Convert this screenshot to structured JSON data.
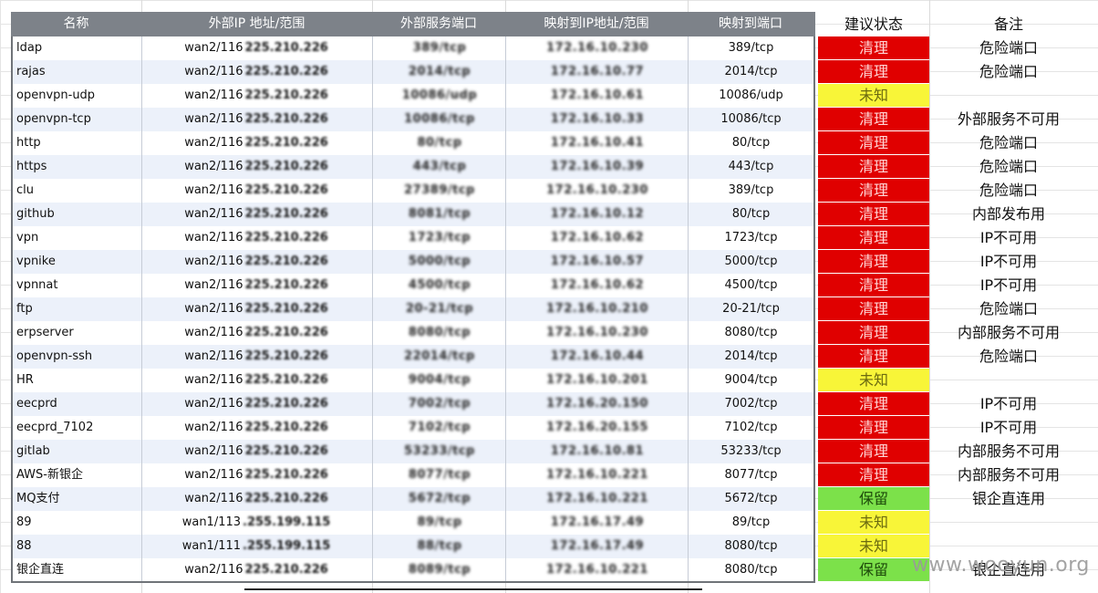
{
  "headers": {
    "name": "名称",
    "ext_ip": "外部IP 地址/范围",
    "ext_port": "外部服务端口",
    "map_ip": "映射到IP地址/范围",
    "map_port": "映射到端口",
    "status": "建议状态",
    "note": "备注"
  },
  "rows": [
    {
      "name": "ldap",
      "ext_prefix": "wan2/116",
      "ext_blur": "225.210.226",
      "ext_port": "389/tcp",
      "map_ip": "172.16.10.230",
      "map_port": "389/tcp",
      "status": "清理",
      "status_color": "red",
      "note": "危险端口"
    },
    {
      "name": "rajas",
      "ext_prefix": "wan2/116",
      "ext_blur": "225.210.226",
      "ext_port": "2014/tcp",
      "map_ip": "172.16.10.77",
      "map_port": "2014/tcp",
      "status": "清理",
      "status_color": "red",
      "note": "危险端口"
    },
    {
      "name": "openvpn-udp",
      "ext_prefix": "wan2/116",
      "ext_blur": "225.210.226",
      "ext_port": "10086/udp",
      "map_ip": "172.16.10.61",
      "map_port": "10086/udp",
      "status": "未知",
      "status_color": "yellow",
      "note": ""
    },
    {
      "name": "openvpn-tcp",
      "ext_prefix": "wan2/116",
      "ext_blur": "225.210.226",
      "ext_port": "10086/tcp",
      "map_ip": "172.16.10.33",
      "map_port": "10086/tcp",
      "status": "清理",
      "status_color": "red",
      "note": "外部服务不可用"
    },
    {
      "name": "http",
      "ext_prefix": "wan2/116",
      "ext_blur": "225.210.226",
      "ext_port": "80/tcp",
      "map_ip": "172.16.10.41",
      "map_port": "80/tcp",
      "status": "清理",
      "status_color": "red",
      "note": "危险端口"
    },
    {
      "name": "https",
      "ext_prefix": "wan2/116",
      "ext_blur": "225.210.226",
      "ext_port": "443/tcp",
      "map_ip": "172.16.10.39",
      "map_port": "443/tcp",
      "status": "清理",
      "status_color": "red",
      "note": "危险端口"
    },
    {
      "name": "clu",
      "ext_prefix": "wan2/116",
      "ext_blur": "225.210.226",
      "ext_port": "27389/tcp",
      "map_ip": "172.16.10.230",
      "map_port": "389/tcp",
      "status": "清理",
      "status_color": "red",
      "note": "危险端口"
    },
    {
      "name": "github",
      "ext_prefix": "wan2/116",
      "ext_blur": "225.210.226",
      "ext_port": "8081/tcp",
      "map_ip": "172.16.10.12",
      "map_port": "80/tcp",
      "status": "清理",
      "status_color": "red",
      "note": "内部发布用"
    },
    {
      "name": "vpn",
      "ext_prefix": "wan2/116",
      "ext_blur": "225.210.226",
      "ext_port": "1723/tcp",
      "map_ip": "172.16.10.62",
      "map_port": "1723/tcp",
      "status": "清理",
      "status_color": "red",
      "note": "IP不可用"
    },
    {
      "name": "vpnike",
      "ext_prefix": "wan2/116",
      "ext_blur": "225.210.226",
      "ext_port": "5000/tcp",
      "map_ip": "172.16.10.57",
      "map_port": "5000/tcp",
      "status": "清理",
      "status_color": "red",
      "note": "IP不可用"
    },
    {
      "name": "vpnnat",
      "ext_prefix": "wan2/116",
      "ext_blur": "225.210.226",
      "ext_port": "4500/tcp",
      "map_ip": "172.16.10.62",
      "map_port": "4500/tcp",
      "status": "清理",
      "status_color": "red",
      "note": "IP不可用"
    },
    {
      "name": "ftp",
      "ext_prefix": "wan2/116",
      "ext_blur": "225.210.226",
      "ext_port": "20-21/tcp",
      "map_ip": "172.16.10.210",
      "map_port": "20-21/tcp",
      "status": "清理",
      "status_color": "red",
      "note": "危险端口"
    },
    {
      "name": "erpserver",
      "ext_prefix": "wan2/116",
      "ext_blur": "225.210.226",
      "ext_port": "8080/tcp",
      "map_ip": "172.16.10.230",
      "map_port": "8080/tcp",
      "status": "清理",
      "status_color": "red",
      "note": "内部服务不可用"
    },
    {
      "name": "openvpn-ssh",
      "ext_prefix": "wan2/116",
      "ext_blur": "225.210.226",
      "ext_port": "22014/tcp",
      "map_ip": "172.16.10.44",
      "map_port": "2014/tcp",
      "status": "清理",
      "status_color": "red",
      "note": "危险端口"
    },
    {
      "name": "HR",
      "ext_prefix": "wan2/116",
      "ext_blur": "225.210.226",
      "ext_port": "9004/tcp",
      "map_ip": "172.16.10.201",
      "map_port": "9004/tcp",
      "status": "未知",
      "status_color": "yellow",
      "note": ""
    },
    {
      "name": "eecprd",
      "ext_prefix": "wan2/116",
      "ext_blur": "225.210.226",
      "ext_port": "7002/tcp",
      "map_ip": "172.16.20.150",
      "map_port": "7002/tcp",
      "status": "清理",
      "status_color": "red",
      "note": "IP不可用"
    },
    {
      "name": "eecprd_7102",
      "ext_prefix": "wan2/116",
      "ext_blur": "225.210.226",
      "ext_port": "7102/tcp",
      "map_ip": "172.16.20.155",
      "map_port": "7102/tcp",
      "status": "清理",
      "status_color": "red",
      "note": "IP不可用"
    },
    {
      "name": "gitlab",
      "ext_prefix": "wan2/116",
      "ext_blur": "225.210.226",
      "ext_port": "53233/tcp",
      "map_ip": "172.16.10.81",
      "map_port": "53233/tcp",
      "status": "清理",
      "status_color": "red",
      "note": "内部服务不可用"
    },
    {
      "name": "AWS-新银企",
      "ext_prefix": "wan2/116",
      "ext_blur": "225.210.226",
      "ext_port": "8077/tcp",
      "map_ip": "172.16.10.221",
      "map_port": "8077/tcp",
      "status": "清理",
      "status_color": "red",
      "note": "内部服务不可用"
    },
    {
      "name": "MQ支付",
      "ext_prefix": "wan2/116",
      "ext_blur": "225.210.226",
      "ext_port": "5672/tcp",
      "map_ip": "172.16.10.221",
      "map_port": "5672/tcp",
      "status": "保留",
      "status_color": "green",
      "note": "银企直连用"
    },
    {
      "name": "89",
      "ext_prefix": "wan1/113",
      "ext_blur": ".255.199.115",
      "ext_port": "89/tcp",
      "map_ip": "172.16.17.49",
      "map_port": "89/tcp",
      "status": "未知",
      "status_color": "yellow",
      "note": ""
    },
    {
      "name": "88",
      "ext_prefix": "wan1/111",
      "ext_blur": ".255.199.115",
      "ext_port": "88/tcp",
      "map_ip": "172.16.17.49",
      "map_port": "8080/tcp",
      "status": "未知",
      "status_color": "yellow",
      "note": ""
    },
    {
      "name": "银企直连",
      "ext_prefix": "wan2/116",
      "ext_blur": "225.210.226",
      "ext_port": "8089/tcp",
      "map_ip": "172.16.10.221",
      "map_port": "8080/tcp",
      "status": "保留",
      "status_color": "green",
      "note": "银企直连用"
    }
  ],
  "colors": {
    "red": "#e00000",
    "yellow": "#f8f538",
    "green": "#7ce14a",
    "header_bg": "#7d8289"
  },
  "watermark": "www.wooyun.org"
}
